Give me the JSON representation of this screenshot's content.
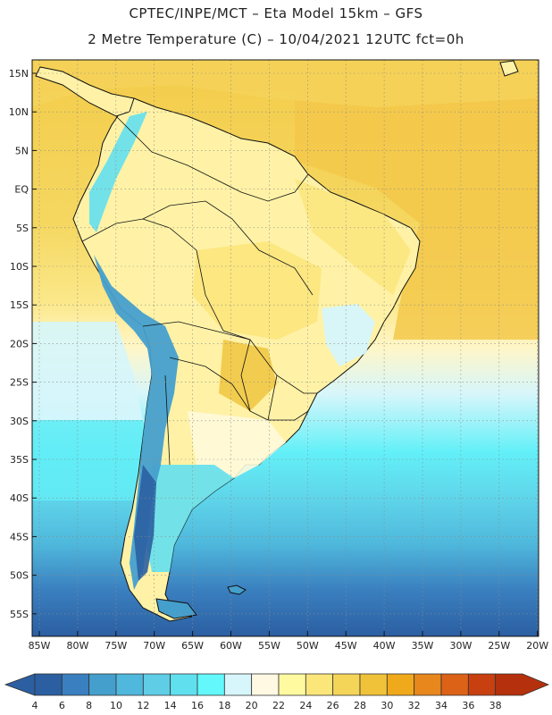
{
  "header": {
    "line1": "CPTEC/INPE/MCT –  Eta Model 15km – GFS",
    "line2": "2 Metre Temperature (C) – 10/04/2021 12UTC fct=0h"
  },
  "map": {
    "lat_labels": [
      "15N",
      "10N",
      "5N",
      "EQ",
      "5S",
      "10S",
      "15S",
      "20S",
      "25S",
      "30S",
      "35S",
      "40S",
      "45S",
      "50S",
      "55S"
    ],
    "lon_labels": [
      "85W",
      "80W",
      "75W",
      "70W",
      "65W",
      "60W",
      "55W",
      "50W",
      "45W",
      "40W",
      "35W",
      "30W",
      "25W",
      "20W"
    ]
  },
  "colorbar": {
    "levels": [
      "4",
      "6",
      "8",
      "10",
      "12",
      "14",
      "16",
      "18",
      "20",
      "22",
      "24",
      "26",
      "28",
      "30",
      "32",
      "34",
      "36",
      "38"
    ],
    "colors": [
      "#2b5fa2",
      "#3a7fbf",
      "#459fcd",
      "#4fb8dc",
      "#5fcde6",
      "#60e0ef",
      "#63f8fb",
      "#d6f6fb",
      "#fff8e2",
      "#fffaa0",
      "#fbe67a",
      "#f5d558",
      "#f0c23a",
      "#f0a91a",
      "#e8871c",
      "#dc6217",
      "#c83f10",
      "#b5300c"
    ]
  }
}
